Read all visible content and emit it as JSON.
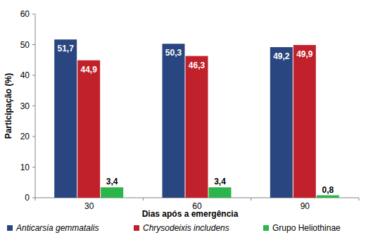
{
  "chart_data": {
    "type": "bar",
    "x_label": "Dias após a emergência",
    "y_label": "Participação (%)",
    "categories": [
      "30",
      "60",
      "90"
    ],
    "series": [
      {
        "name": "Anticarsia gemmatalis",
        "color": "#2a4680",
        "values": [
          51.7,
          50.3,
          49.2
        ],
        "value_labels": [
          "51,7",
          "50,3",
          "49,2"
        ]
      },
      {
        "name": "Chrysodeixis includens",
        "color": "#c0212b",
        "values": [
          44.9,
          46.3,
          49.9
        ],
        "value_labels": [
          "44,9",
          "46,3",
          "49,9"
        ]
      },
      {
        "name": "Grupo Heliothinae",
        "color": "#2bb54a",
        "values": [
          3.4,
          3.4,
          0.8
        ],
        "value_labels": [
          "3,4",
          "3,4",
          "0,8"
        ]
      }
    ],
    "ylim": [
      0,
      60
    ],
    "yticks": [
      0,
      10,
      20,
      30,
      40,
      50,
      60
    ],
    "grid": false,
    "legend": "bottom",
    "data_labels": true
  }
}
